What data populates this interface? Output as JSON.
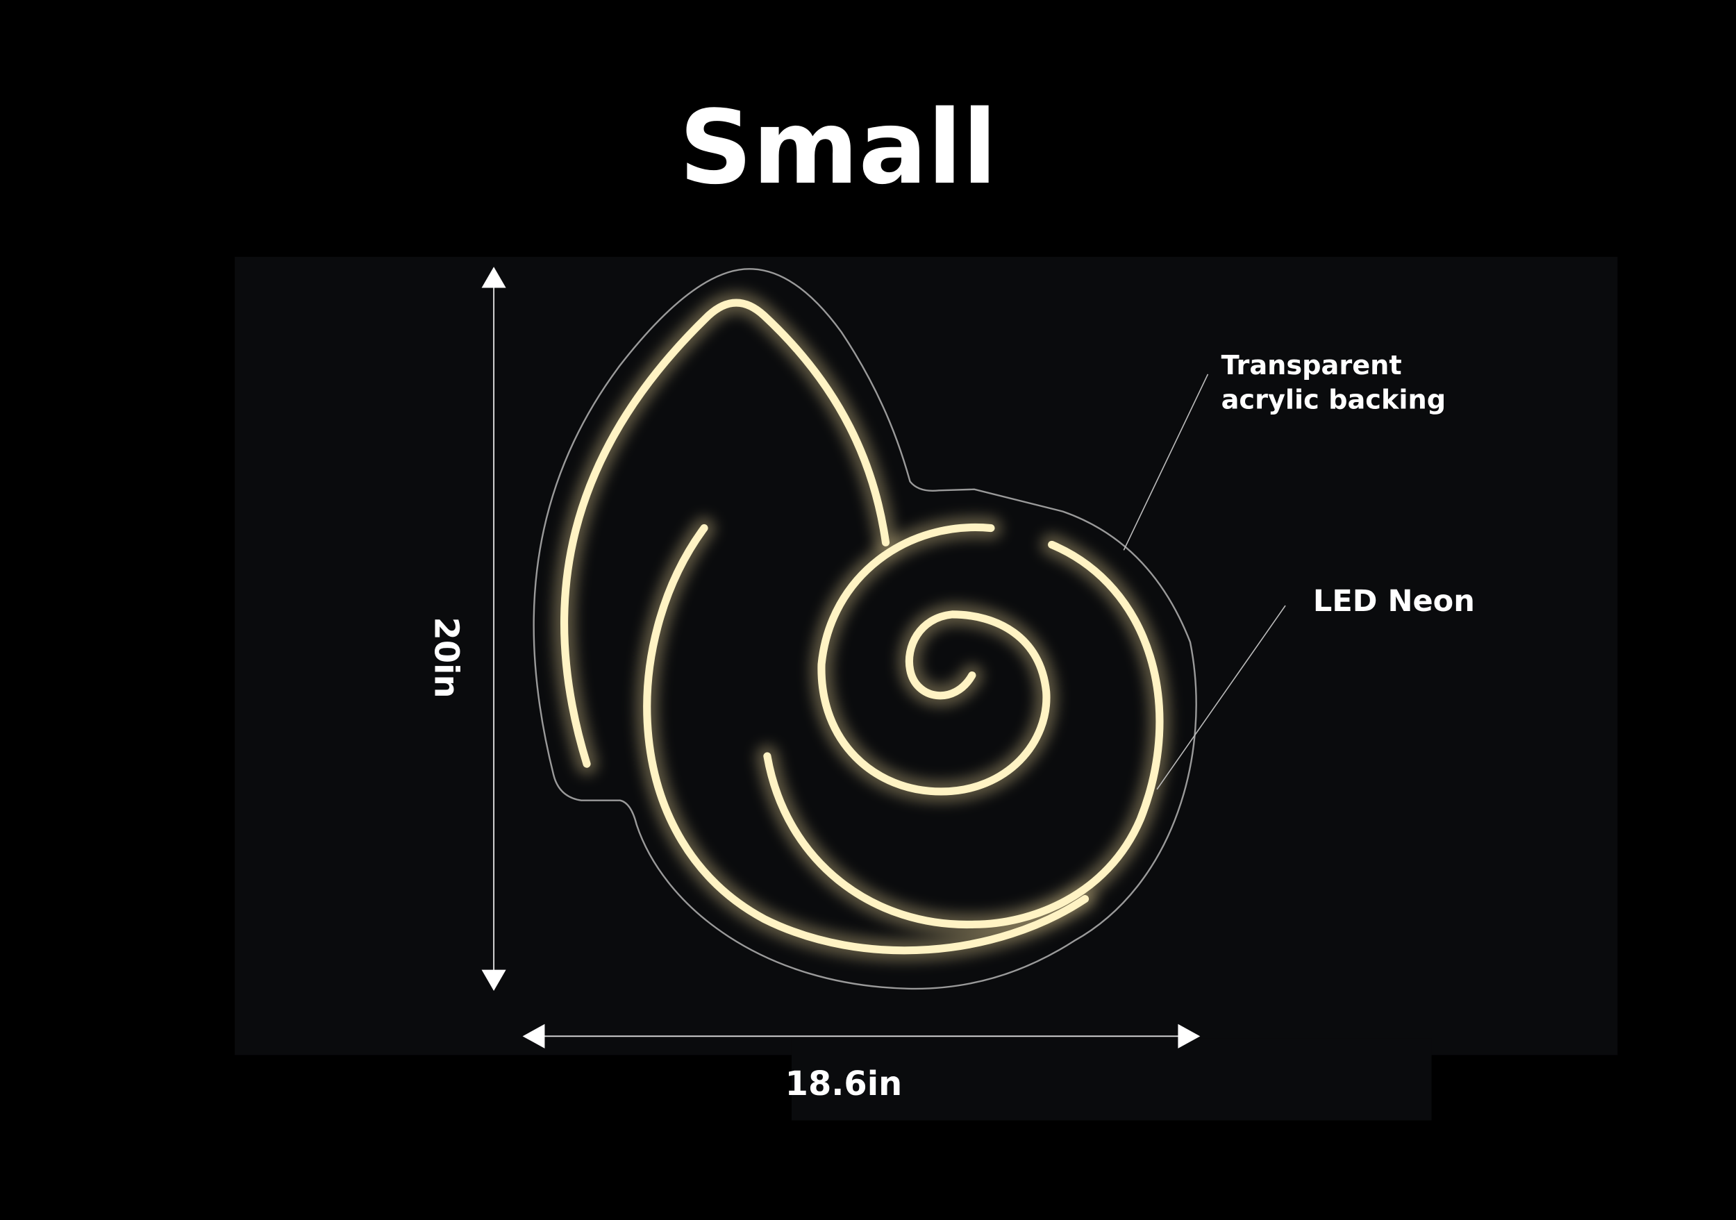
{
  "title": "Small",
  "dimensions": {
    "height": "20in",
    "width": "18.6in"
  },
  "callouts": {
    "backing_line1": "Transparent",
    "backing_line2": "acrylic backing",
    "neon": "LED Neon"
  },
  "colors": {
    "background": "#000000",
    "panel": "#0a0b0d",
    "neon": "#fff3c4",
    "outline": "#9a9a9a"
  }
}
